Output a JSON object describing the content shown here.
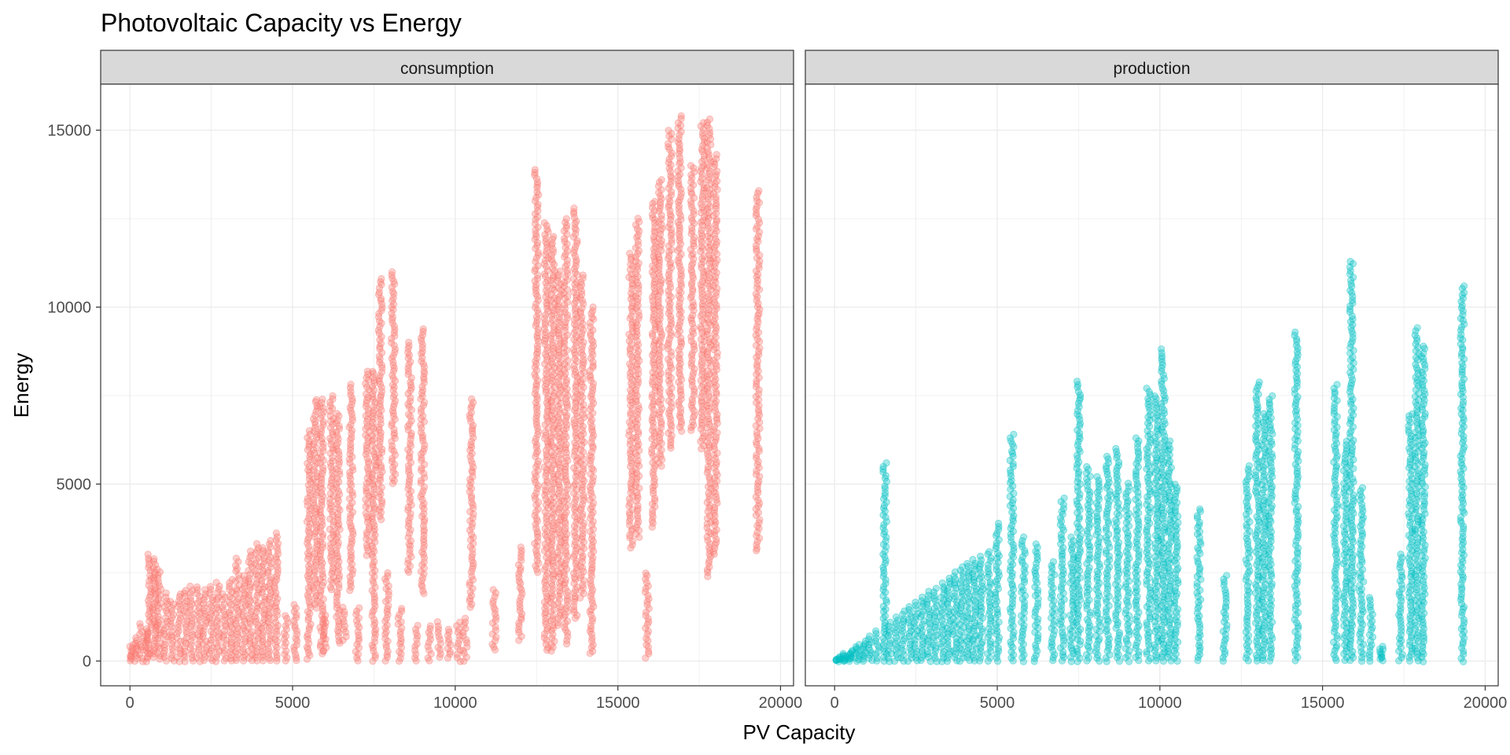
{
  "chart_data": {
    "type": "scatter",
    "title": "Photovoltaic Capacity vs Energy",
    "xlabel": "PV Capacity",
    "ylabel": "Energy",
    "xlim": [
      -900,
      20400
    ],
    "ylim": [
      -700,
      16300
    ],
    "x_ticks": [
      0,
      5000,
      10000,
      15000,
      20000
    ],
    "y_ticks": [
      0,
      5000,
      10000,
      15000
    ],
    "x_tick_labels": [
      "0",
      "5000",
      "10000",
      "15000",
      "20000"
    ],
    "y_tick_labels": [
      "0",
      "5000",
      "10000",
      "15000"
    ],
    "grid": true,
    "legend": "none",
    "facets": [
      {
        "name": "consumption",
        "color": "#F8766D",
        "point_columns": [
          {
            "x": 50,
            "y_min": 0,
            "y_max": 450
          },
          {
            "x": 200,
            "y_min": 0,
            "y_max": 650
          },
          {
            "x": 350,
            "y_min": 0,
            "y_max": 1050
          },
          {
            "x": 500,
            "y_min": 0,
            "y_max": 900
          },
          {
            "x": 600,
            "y_min": 100,
            "y_max": 3000
          },
          {
            "x": 750,
            "y_min": 100,
            "y_max": 2900
          },
          {
            "x": 900,
            "y_min": 50,
            "y_max": 2600
          },
          {
            "x": 1100,
            "y_min": 0,
            "y_max": 1900
          },
          {
            "x": 1300,
            "y_min": 0,
            "y_max": 1700
          },
          {
            "x": 1500,
            "y_min": 0,
            "y_max": 1900
          },
          {
            "x": 1700,
            "y_min": 0,
            "y_max": 2000
          },
          {
            "x": 1900,
            "y_min": 0,
            "y_max": 2100
          },
          {
            "x": 2100,
            "y_min": 0,
            "y_max": 2100
          },
          {
            "x": 2300,
            "y_min": 0,
            "y_max": 2000
          },
          {
            "x": 2500,
            "y_min": 0,
            "y_max": 2100
          },
          {
            "x": 2700,
            "y_min": 0,
            "y_max": 2200
          },
          {
            "x": 2900,
            "y_min": 0,
            "y_max": 1900
          },
          {
            "x": 3100,
            "y_min": 0,
            "y_max": 2300
          },
          {
            "x": 3300,
            "y_min": 0,
            "y_max": 2900
          },
          {
            "x": 3500,
            "y_min": 0,
            "y_max": 2400
          },
          {
            "x": 3700,
            "y_min": 0,
            "y_max": 3100
          },
          {
            "x": 3900,
            "y_min": 0,
            "y_max": 3300
          },
          {
            "x": 4100,
            "y_min": 0,
            "y_max": 3200
          },
          {
            "x": 4300,
            "y_min": 0,
            "y_max": 3400
          },
          {
            "x": 4500,
            "y_min": 0,
            "y_max": 3600
          },
          {
            "x": 4800,
            "y_min": 0,
            "y_max": 1300
          },
          {
            "x": 5100,
            "y_min": 0,
            "y_max": 1600
          },
          {
            "x": 5500,
            "y_min": 50,
            "y_max": 6500
          },
          {
            "x": 5700,
            "y_min": 1500,
            "y_max": 7400
          },
          {
            "x": 5900,
            "y_min": 200,
            "y_max": 7400
          },
          {
            "x": 6000,
            "y_min": 300,
            "y_max": 1300
          },
          {
            "x": 6200,
            "y_min": 2000,
            "y_max": 7500
          },
          {
            "x": 6400,
            "y_min": 500,
            "y_max": 7000
          },
          {
            "x": 6600,
            "y_min": 600,
            "y_max": 1500
          },
          {
            "x": 6800,
            "y_min": 2000,
            "y_max": 7800
          },
          {
            "x": 7000,
            "y_min": 0,
            "y_max": 1500
          },
          {
            "x": 7300,
            "y_min": 3000,
            "y_max": 8200
          },
          {
            "x": 7500,
            "y_min": 0,
            "y_max": 8200
          },
          {
            "x": 7700,
            "y_min": 4000,
            "y_max": 10800
          },
          {
            "x": 7900,
            "y_min": 0,
            "y_max": 2500
          },
          {
            "x": 8100,
            "y_min": 5000,
            "y_max": 11000
          },
          {
            "x": 8300,
            "y_min": 0,
            "y_max": 1500
          },
          {
            "x": 8600,
            "y_min": 2500,
            "y_max": 9000
          },
          {
            "x": 8800,
            "y_min": 0,
            "y_max": 1000
          },
          {
            "x": 9000,
            "y_min": 1900,
            "y_max": 9400
          },
          {
            "x": 9200,
            "y_min": 0,
            "y_max": 1000
          },
          {
            "x": 9500,
            "y_min": 100,
            "y_max": 1100
          },
          {
            "x": 9800,
            "y_min": 100,
            "y_max": 900
          },
          {
            "x": 10100,
            "y_min": 0,
            "y_max": 1100
          },
          {
            "x": 10300,
            "y_min": 0,
            "y_max": 1200
          },
          {
            "x": 10500,
            "y_min": 1500,
            "y_max": 7400
          },
          {
            "x": 11200,
            "y_min": 300,
            "y_max": 2000
          },
          {
            "x": 12000,
            "y_min": 600,
            "y_max": 3200
          },
          {
            "x": 12500,
            "y_min": 2500,
            "y_max": 13900
          },
          {
            "x": 12800,
            "y_min": 300,
            "y_max": 12400
          },
          {
            "x": 13000,
            "y_min": 300,
            "y_max": 12000
          },
          {
            "x": 13200,
            "y_min": 1000,
            "y_max": 11000
          },
          {
            "x": 13400,
            "y_min": 500,
            "y_max": 12500
          },
          {
            "x": 13700,
            "y_min": 1200,
            "y_max": 12800
          },
          {
            "x": 13900,
            "y_min": 1800,
            "y_max": 10900
          },
          {
            "x": 14200,
            "y_min": 200,
            "y_max": 10000
          },
          {
            "x": 15400,
            "y_min": 3200,
            "y_max": 11500
          },
          {
            "x": 15600,
            "y_min": 3500,
            "y_max": 12500
          },
          {
            "x": 15900,
            "y_min": 100,
            "y_max": 2500
          },
          {
            "x": 16100,
            "y_min": 3800,
            "y_max": 13000
          },
          {
            "x": 16300,
            "y_min": 5500,
            "y_max": 13600
          },
          {
            "x": 16600,
            "y_min": 6000,
            "y_max": 15000
          },
          {
            "x": 16900,
            "y_min": 6500,
            "y_max": 15400
          },
          {
            "x": 17300,
            "y_min": 6500,
            "y_max": 14000
          },
          {
            "x": 17600,
            "y_min": 6000,
            "y_max": 15200
          },
          {
            "x": 17800,
            "y_min": 2400,
            "y_max": 15300
          },
          {
            "x": 18000,
            "y_min": 3000,
            "y_max": 14300
          },
          {
            "x": 19300,
            "y_min": 3100,
            "y_max": 13300
          }
        ]
      },
      {
        "name": "production",
        "color": "#00BFC4",
        "point_columns": [
          {
            "x": 100,
            "y_min": 0,
            "y_max": 100
          },
          {
            "x": 300,
            "y_min": 0,
            "y_max": 200
          },
          {
            "x": 500,
            "y_min": 0,
            "y_max": 300
          },
          {
            "x": 700,
            "y_min": 0,
            "y_max": 450
          },
          {
            "x": 900,
            "y_min": 0,
            "y_max": 550
          },
          {
            "x": 1100,
            "y_min": 0,
            "y_max": 700
          },
          {
            "x": 1300,
            "y_min": 0,
            "y_max": 850
          },
          {
            "x": 1550,
            "y_min": 0,
            "y_max": 5600
          },
          {
            "x": 1700,
            "y_min": 0,
            "y_max": 1100
          },
          {
            "x": 1900,
            "y_min": 0,
            "y_max": 1250
          },
          {
            "x": 2100,
            "y_min": 0,
            "y_max": 1400
          },
          {
            "x": 2300,
            "y_min": 0,
            "y_max": 1550
          },
          {
            "x": 2500,
            "y_min": 0,
            "y_max": 1650
          },
          {
            "x": 2700,
            "y_min": 0,
            "y_max": 1800
          },
          {
            "x": 2900,
            "y_min": 0,
            "y_max": 1950
          },
          {
            "x": 3100,
            "y_min": 0,
            "y_max": 2050
          },
          {
            "x": 3300,
            "y_min": 0,
            "y_max": 2200
          },
          {
            "x": 3500,
            "y_min": 0,
            "y_max": 2350
          },
          {
            "x": 3700,
            "y_min": 0,
            "y_max": 2500
          },
          {
            "x": 3900,
            "y_min": 0,
            "y_max": 2650
          },
          {
            "x": 4100,
            "y_min": 0,
            "y_max": 2750
          },
          {
            "x": 4300,
            "y_min": 0,
            "y_max": 2850
          },
          {
            "x": 4500,
            "y_min": 0,
            "y_max": 2950
          },
          {
            "x": 4750,
            "y_min": 0,
            "y_max": 3100
          },
          {
            "x": 5000,
            "y_min": 0,
            "y_max": 3900
          },
          {
            "x": 5450,
            "y_min": 0,
            "y_max": 6400
          },
          {
            "x": 5800,
            "y_min": 0,
            "y_max": 3500
          },
          {
            "x": 6200,
            "y_min": 0,
            "y_max": 3300
          },
          {
            "x": 6700,
            "y_min": 0,
            "y_max": 2800
          },
          {
            "x": 7000,
            "y_min": 0,
            "y_max": 4600
          },
          {
            "x": 7300,
            "y_min": 0,
            "y_max": 3500
          },
          {
            "x": 7500,
            "y_min": 0,
            "y_max": 7900
          },
          {
            "x": 7800,
            "y_min": 0,
            "y_max": 5500
          },
          {
            "x": 8100,
            "y_min": 0,
            "y_max": 5200
          },
          {
            "x": 8400,
            "y_min": 0,
            "y_max": 5800
          },
          {
            "x": 8700,
            "y_min": 0,
            "y_max": 6000
          },
          {
            "x": 9000,
            "y_min": 0,
            "y_max": 5000
          },
          {
            "x": 9300,
            "y_min": 0,
            "y_max": 6300
          },
          {
            "x": 9650,
            "y_min": 0,
            "y_max": 7700
          },
          {
            "x": 9900,
            "y_min": 0,
            "y_max": 7500
          },
          {
            "x": 10100,
            "y_min": 0,
            "y_max": 8800
          },
          {
            "x": 10300,
            "y_min": 0,
            "y_max": 6200
          },
          {
            "x": 10500,
            "y_min": 0,
            "y_max": 5000
          },
          {
            "x": 11200,
            "y_min": 0,
            "y_max": 4300
          },
          {
            "x": 12000,
            "y_min": 0,
            "y_max": 2400
          },
          {
            "x": 12700,
            "y_min": 0,
            "y_max": 5500
          },
          {
            "x": 13000,
            "y_min": 0,
            "y_max": 7900
          },
          {
            "x": 13200,
            "y_min": 0,
            "y_max": 7000
          },
          {
            "x": 13400,
            "y_min": 0,
            "y_max": 7500
          },
          {
            "x": 14200,
            "y_min": 0,
            "y_max": 9300
          },
          {
            "x": 15400,
            "y_min": 0,
            "y_max": 7800
          },
          {
            "x": 15700,
            "y_min": 0,
            "y_max": 6200
          },
          {
            "x": 15900,
            "y_min": 0,
            "y_max": 11300
          },
          {
            "x": 16200,
            "y_min": 0,
            "y_max": 4900
          },
          {
            "x": 16500,
            "y_min": 0,
            "y_max": 1800
          },
          {
            "x": 16800,
            "y_min": 0,
            "y_max": 400
          },
          {
            "x": 17400,
            "y_min": 0,
            "y_max": 3000
          },
          {
            "x": 17700,
            "y_min": 0,
            "y_max": 7000
          },
          {
            "x": 17900,
            "y_min": 0,
            "y_max": 9400
          },
          {
            "x": 18100,
            "y_min": 0,
            "y_max": 8900
          },
          {
            "x": 19300,
            "y_min": 0,
            "y_max": 10600
          }
        ]
      }
    ]
  }
}
